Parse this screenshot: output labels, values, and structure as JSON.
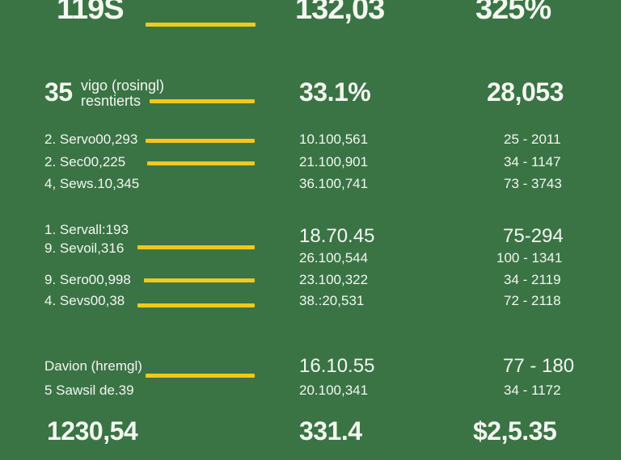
{
  "header": {
    "col1": "119S",
    "col2": "132,03",
    "col3": "325%"
  },
  "section1": {
    "big_number": "35",
    "label_line1": "vigo (rosingl)",
    "label_line2": "resntierts",
    "col2": "33.1%",
    "col3": "28,053"
  },
  "group1": [
    {
      "label": "2. Servo00,293",
      "value": "10.100,561",
      "range": "25 - 2011"
    },
    {
      "label": "2. Sec00,225",
      "value": "21.100,901",
      "range": "34 - 1147"
    },
    {
      "label": "4, Sews.10,345",
      "value": "36.100,741",
      "range": "73 - 3743"
    }
  ],
  "group2_top": {
    "label": "1. Servall:193",
    "value": "18.70.45",
    "range": "75-294"
  },
  "group2": [
    {
      "label": "9. Sevoil,316",
      "value": "26.100,544",
      "range": "100 - 1341"
    },
    {
      "label": "9. Sero00,998",
      "value": "23.100,322",
      "range": "34 - 2119"
    },
    {
      "label": "4. Sevs00,38",
      "value": "38.:20,531",
      "range": "72 - 2118"
    }
  ],
  "group3": {
    "label": "Davion (hremgl)",
    "value": "16.10.55",
    "range": "77 - 180",
    "row_label": "5 Sawsil de.39",
    "row_value": "20.100,341",
    "row_range": "34 - 1172"
  },
  "footer": {
    "col1": "1230,54",
    "col2": "331.4",
    "col3": "$2,5.35"
  },
  "colors": {
    "background": "#3a7445",
    "bar": "#f3c81a",
    "text": "#f4f6f0"
  }
}
